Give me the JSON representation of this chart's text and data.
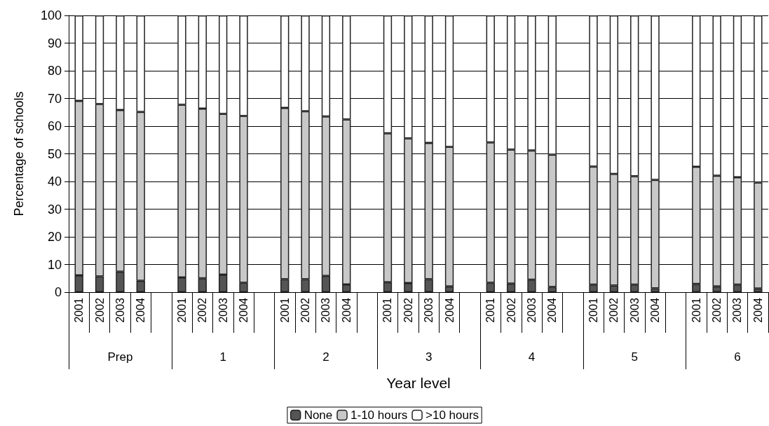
{
  "chart_data": {
    "type": "bar",
    "stacked": true,
    "xlabel": "Year level",
    "ylabel": "Percentage of schools",
    "categories": [
      "2001",
      "2002",
      "2003",
      "2004",
      null,
      "2001",
      "2002",
      "2003",
      "2004",
      null,
      "2001",
      "2002",
      "2003",
      "2004",
      null,
      "2001",
      "2002",
      "2003",
      "2004",
      null,
      "2001",
      "2002",
      "2003",
      "2004",
      null,
      "2001",
      "2002",
      "2003",
      "2004",
      null,
      "2001",
      "2002",
      "2003",
      "2004"
    ],
    "annotations": [
      "Prep",
      "1",
      "2",
      "3",
      "4",
      "5",
      "6"
    ],
    "series": [
      {
        "name": "None",
        "color": "#555555",
        "values": [
          6.1,
          5.7,
          7.4,
          4.1,
          null,
          5.3,
          5.0,
          6.3,
          3.4,
          null,
          4.7,
          4.7,
          5.9,
          2.8,
          null,
          3.6,
          3.3,
          4.7,
          2.1,
          null,
          3.4,
          3.1,
          4.5,
          1.9,
          null,
          2.7,
          2.4,
          2.7,
          1.4,
          null,
          3.0,
          2.1,
          2.7,
          1.3
        ]
      },
      {
        "name": "1-10 hours",
        "color": "#c8c8c8",
        "values": [
          63.0,
          62.3,
          58.4,
          61.0,
          null,
          62.4,
          61.3,
          58.1,
          60.3,
          null,
          61.9,
          60.7,
          57.6,
          59.6,
          null,
          53.8,
          52.3,
          49.2,
          50.4,
          null,
          50.7,
          48.4,
          46.7,
          47.8,
          null,
          42.7,
          40.3,
          39.2,
          39.2,
          null,
          42.3,
          40.0,
          38.8,
          38.3
        ]
      },
      {
        "name": ">10 hours",
        "color": "#ffffff",
        "values": [
          30.9,
          32.0,
          34.2,
          34.9,
          null,
          32.3,
          33.7,
          35.6,
          36.3,
          null,
          33.4,
          34.6,
          36.5,
          37.6,
          null,
          42.6,
          44.4,
          46.1,
          47.5,
          null,
          45.9,
          48.5,
          48.8,
          50.3,
          null,
          54.6,
          57.3,
          58.1,
          59.4,
          null,
          54.7,
          57.9,
          58.5,
          60.4
        ]
      }
    ],
    "ylim": [
      0,
      100
    ],
    "yticks": [
      0,
      10,
      20,
      30,
      40,
      50,
      60,
      70,
      80,
      90,
      100
    ],
    "grid": "y",
    "legend": "bottom"
  }
}
